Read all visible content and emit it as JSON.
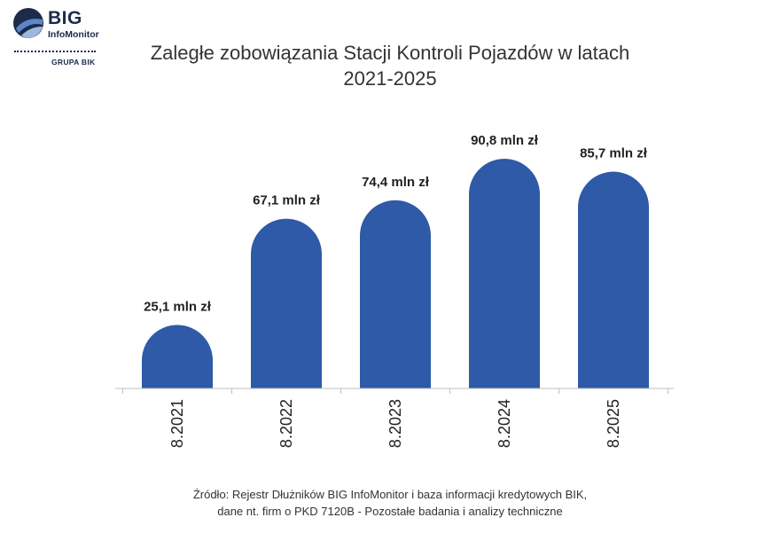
{
  "logo": {
    "big": "BIG",
    "sub": "InfoMonitor",
    "grupa": "GRUPA BIK"
  },
  "title_line1": "Zaległe zobowiązania Stacji Kontroli Pojazdów w latach",
  "title_line2": "2021-2025",
  "chart_data": {
    "type": "bar",
    "title": "Zaległe zobowiązania Stacji Kontroli Pojazdów w latach 2021-2025",
    "categories": [
      "8.2021",
      "8.2022",
      "8.2023",
      "8.2024",
      "8.2025"
    ],
    "values": [
      25.1,
      67.1,
      74.4,
      90.8,
      85.7
    ],
    "data_labels": [
      "25,1 mln zł",
      "67,1 mln zł",
      "74,4 mln zł",
      "90,8 mln zł",
      "85,7 mln zł"
    ],
    "unit": "mln zł",
    "grid": false,
    "bar_color": "#2e5aa8"
  },
  "source_line1": "Źródło: Rejestr Dłużników BIG InfoMonitor i baza informacji kredytowych BIK,",
  "source_line2": "dane nt. firm o PKD 7120B - Pozostałe badania i analizy techniczne"
}
